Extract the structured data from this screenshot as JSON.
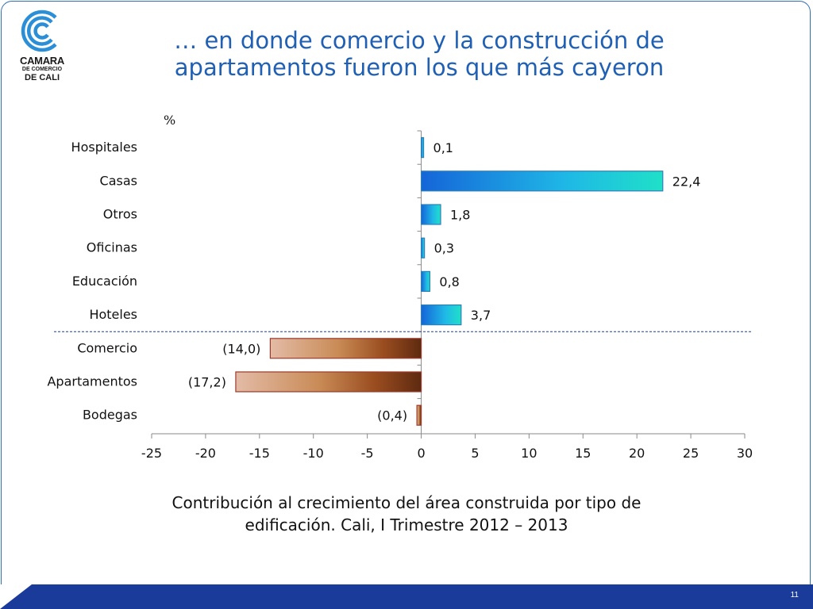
{
  "logo": {
    "line1": "CAMARA",
    "line2": "DE COMERCIO",
    "line3": "DE CALI"
  },
  "title": {
    "line1": "… en donde comercio y la construcción de",
    "line2": "apartamentos fueron los que más cayeron"
  },
  "caption": {
    "line1": "Contribución al crecimiento del área construida por tipo de",
    "line2": "edificación. Cali, I Trimestre 2012 – 2013"
  },
  "page_number": "11",
  "colors": {
    "title": "#1f5fb4",
    "positive_start": "#1565d8",
    "positive_end": "#1fe0c8",
    "negative_start": "#e0b8a0",
    "negative_end": "#6a2f12",
    "divider": "#1b3b9a",
    "footer": "#1b3b9a"
  },
  "chart_data": {
    "type": "bar",
    "orientation": "horizontal",
    "unit_label": "%",
    "categories": [
      "Hospitales",
      "Casas",
      "Otros",
      "Oficinas",
      "Educación",
      "Hoteles",
      "Comercio",
      "Apartamentos",
      "Bodegas"
    ],
    "values": [
      0.1,
      22.4,
      1.8,
      0.3,
      0.8,
      3.7,
      -14.0,
      -17.2,
      -0.4
    ],
    "data_labels": [
      "0,1",
      "22,4",
      "1,8",
      "0,3",
      "0,8",
      "3,7",
      "(14,0)",
      "(17,2)",
      "(0,4)"
    ],
    "xlim": [
      -25,
      30
    ],
    "xticks": [
      -25,
      -20,
      -15,
      -10,
      -5,
      0,
      5,
      10,
      15,
      20,
      25,
      30
    ],
    "divider_after_category": "Hoteles",
    "grid": false,
    "legend": "none"
  }
}
